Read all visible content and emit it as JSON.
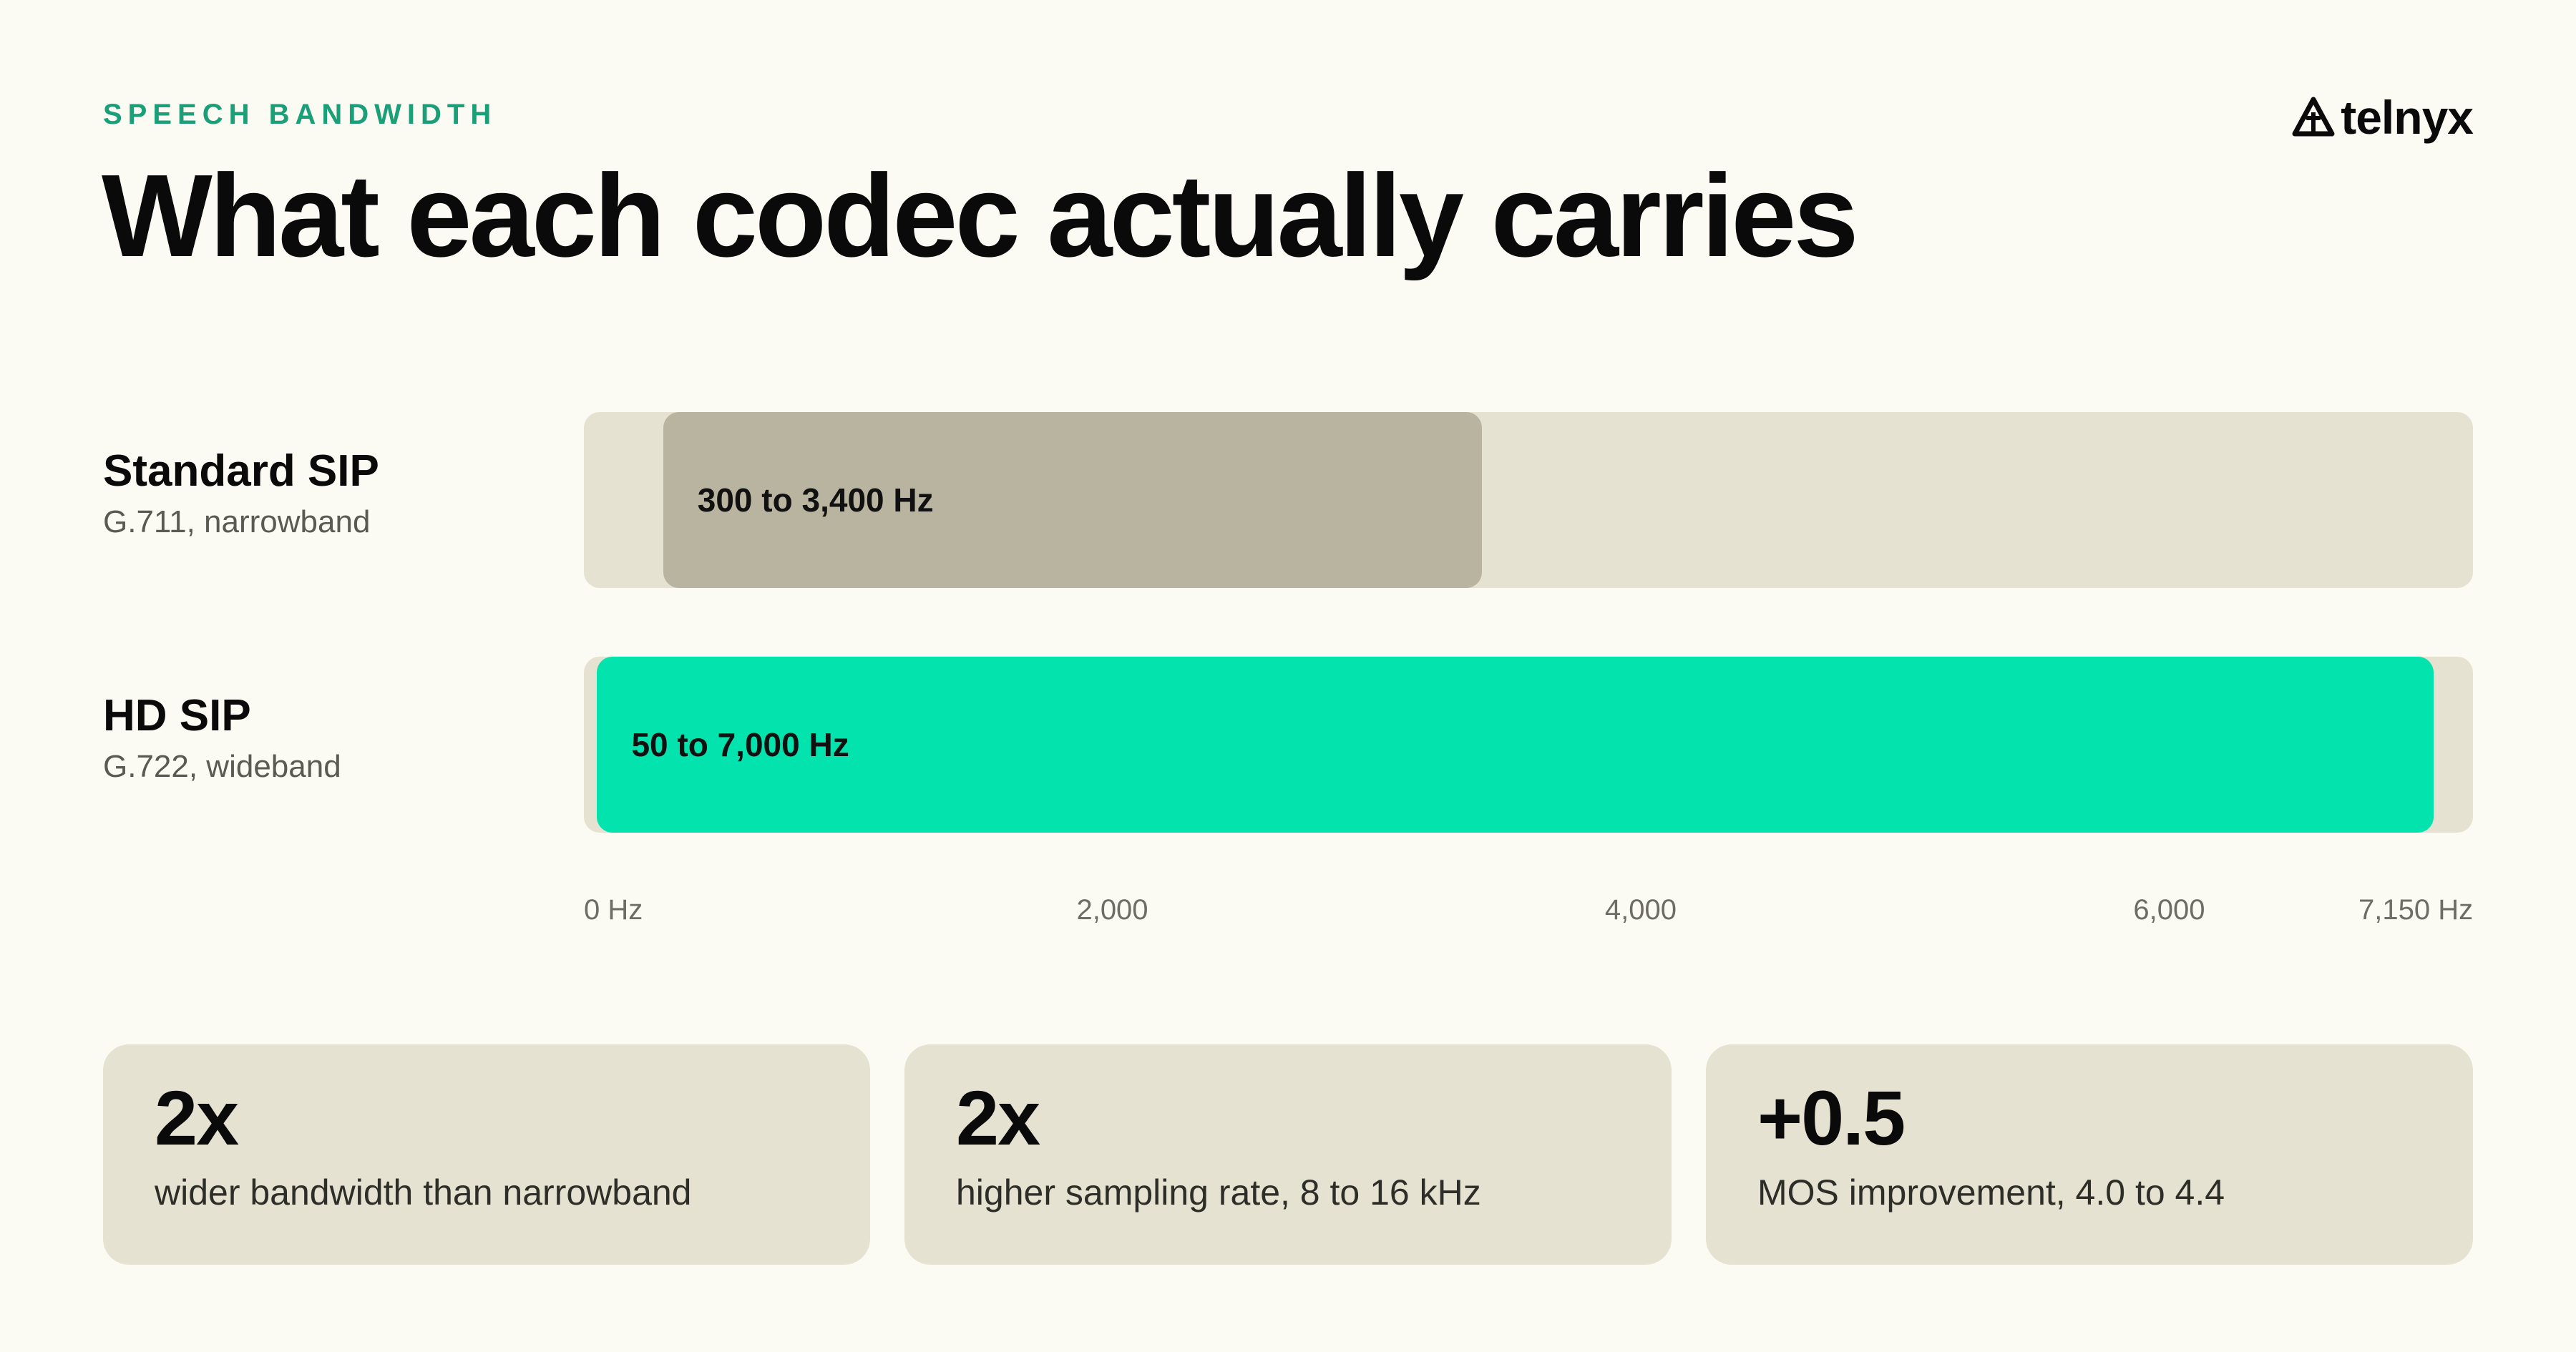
{
  "header": {
    "eyebrow": "SPEECH BANDWIDTH",
    "title": "What each codec actually carries"
  },
  "logo": {
    "text": "telnyx",
    "icon": "telnyx-logo-icon"
  },
  "colors": {
    "background": "#fcfbf3",
    "track": "#e6e2d2",
    "narrowband_fill": "#b9b4a0",
    "wideband_fill": "#02e3ae",
    "accent": "#1a9f78"
  },
  "chart_data": {
    "type": "bar",
    "orientation": "horizontal-range",
    "title": "What each codec actually carries",
    "xlim": [
      0,
      7150
    ],
    "x_unit": "Hz",
    "ticks": [
      {
        "value": 0,
        "label": "0 Hz"
      },
      {
        "value": 2000,
        "label": "2,000"
      },
      {
        "value": 4000,
        "label": "4,000"
      },
      {
        "value": 6000,
        "label": "6,000"
      },
      {
        "value": 7150,
        "label": "7,150 Hz"
      }
    ],
    "grid": false,
    "legend": "none",
    "series": [
      {
        "name": "Standard SIP",
        "subtitle": "G.711, narrowband",
        "start": 300,
        "end": 3400,
        "label": "300 to 3,400 Hz",
        "color": "#b9b4a0"
      },
      {
        "name": "HD SIP",
        "subtitle": "G.722, wideband",
        "start": 50,
        "end": 7000,
        "label": "50 to 7,000 Hz",
        "color": "#02e3ae"
      }
    ]
  },
  "stats": [
    {
      "value": "2x",
      "desc": "wider bandwidth than narrowband"
    },
    {
      "value": "2x",
      "desc": "higher sampling rate, 8 to 16 kHz"
    },
    {
      "value": "+0.5",
      "desc": "MOS improvement, 4.0 to 4.4"
    }
  ]
}
